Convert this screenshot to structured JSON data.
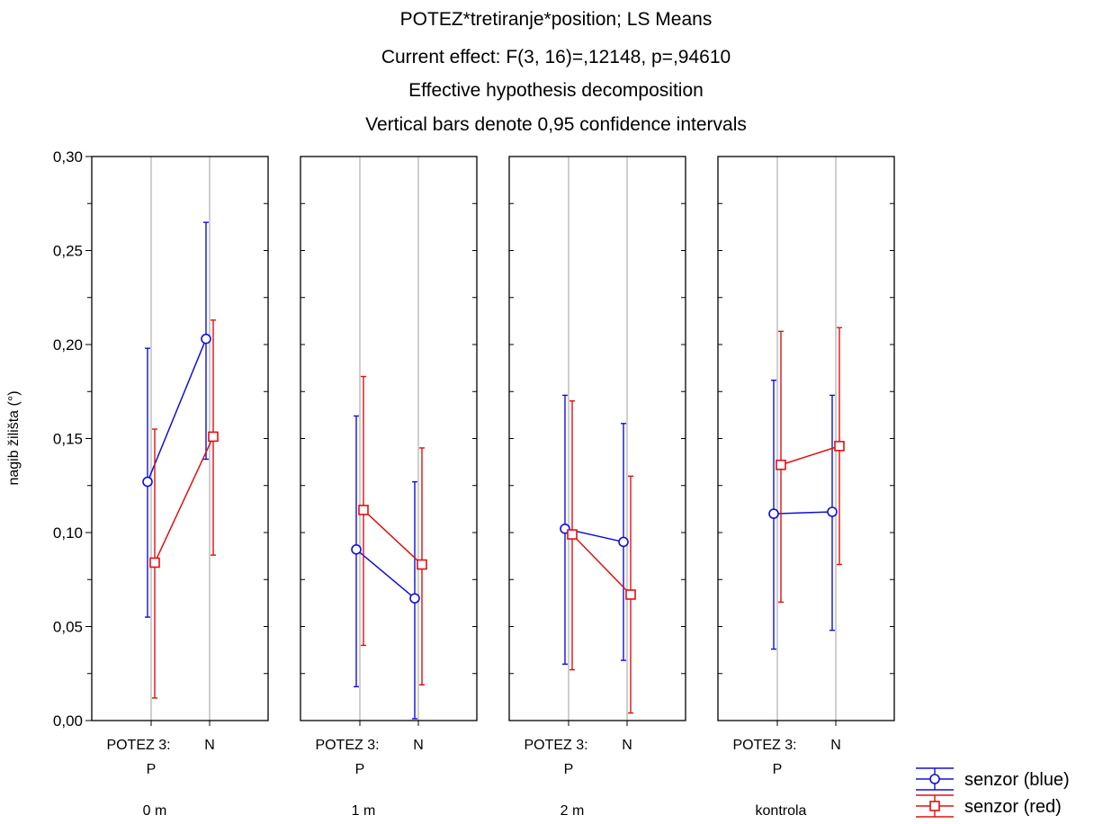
{
  "chart_data": {
    "type": "line",
    "title_lines": [
      "POTEZ*tretiranje*position; LS Means",
      "Current effect: F(3, 16)=,12148, p=,94610",
      "Effective hypothesis decomposition",
      "Vertical bars denote 0,95 confidence intervals"
    ],
    "ylabel": "nagib žilišta (°)",
    "ylim": [
      0,
      0.3
    ],
    "y_ticks": [
      "0,00",
      "0,05",
      "0,10",
      "0,15",
      "0,20",
      "0,25",
      "0,30"
    ],
    "x_factor_label": "POTEZ 3:",
    "categories": [
      "P",
      "N"
    ],
    "grid": true,
    "legend_position": "bottom-right",
    "panels": [
      {
        "label": "0 m",
        "series": [
          {
            "name": "senzor (blue)",
            "color": "#1010d8",
            "marker": "circle",
            "values": [
              0.127,
              0.203
            ],
            "ci_low": [
              0.055,
              0.139
            ],
            "ci_high": [
              0.198,
              0.265
            ]
          },
          {
            "name": "senzor (red)",
            "color": "#e01010",
            "marker": "square",
            "values": [
              0.084,
              0.151
            ],
            "ci_low": [
              0.012,
              0.088
            ],
            "ci_high": [
              0.155,
              0.213
            ]
          }
        ]
      },
      {
        "label": "1 m",
        "series": [
          {
            "name": "senzor (blue)",
            "color": "#1010d8",
            "marker": "circle",
            "values": [
              0.091,
              0.065
            ],
            "ci_low": [
              0.018,
              0.001
            ],
            "ci_high": [
              0.162,
              0.127
            ]
          },
          {
            "name": "senzor (red)",
            "color": "#e01010",
            "marker": "square",
            "values": [
              0.112,
              0.083
            ],
            "ci_low": [
              0.04,
              0.019
            ],
            "ci_high": [
              0.183,
              0.145
            ]
          }
        ]
      },
      {
        "label": "2 m",
        "series": [
          {
            "name": "senzor (blue)",
            "color": "#1010d8",
            "marker": "circle",
            "values": [
              0.102,
              0.095
            ],
            "ci_low": [
              0.03,
              0.032
            ],
            "ci_high": [
              0.173,
              0.158
            ]
          },
          {
            "name": "senzor (red)",
            "color": "#e01010",
            "marker": "square",
            "values": [
              0.099,
              0.067
            ],
            "ci_low": [
              0.027,
              0.004
            ],
            "ci_high": [
              0.17,
              0.13
            ]
          }
        ]
      },
      {
        "label": "kontrola",
        "series": [
          {
            "name": "senzor (blue)",
            "color": "#1010d8",
            "marker": "circle",
            "values": [
              0.11,
              0.111
            ],
            "ci_low": [
              0.038,
              0.048
            ],
            "ci_high": [
              0.181,
              0.173
            ]
          },
          {
            "name": "senzor (red)",
            "color": "#e01010",
            "marker": "square",
            "values": [
              0.136,
              0.146
            ],
            "ci_low": [
              0.063,
              0.083
            ],
            "ci_high": [
              0.207,
              0.209
            ]
          }
        ]
      }
    ],
    "legend": [
      {
        "label": "senzor (blue)",
        "color": "#1010d8",
        "marker": "circle"
      },
      {
        "label": "senzor (red)",
        "color": "#e01010",
        "marker": "square"
      }
    ]
  }
}
